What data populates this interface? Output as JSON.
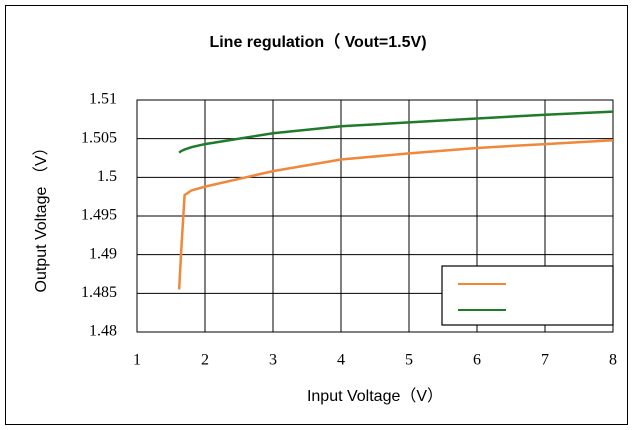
{
  "chart_data": {
    "type": "line",
    "title": "Line regulation（ Vout=1.5V)",
    "x_label": "Input Voltage（V）",
    "y_label": "Output Voltage （V）",
    "x": [
      1.62,
      1.65,
      1.7,
      1.8,
      2,
      3,
      4,
      5,
      6,
      7,
      8
    ],
    "series": [
      {
        "color": "#f0883a",
        "values": [
          1.4855,
          1.4905,
          1.4977,
          1.4983,
          1.4988,
          1.5008,
          1.5023,
          1.5031,
          1.5038,
          1.5043,
          1.5048
        ]
      },
      {
        "color": "#1e7b2a",
        "values": [
          1.5032,
          1.5034,
          1.5036,
          1.5039,
          1.5043,
          1.5057,
          1.5066,
          1.5071,
          1.5076,
          1.5081,
          1.5085
        ]
      }
    ],
    "xlim": [
      1,
      8
    ],
    "xticks": [
      1,
      2,
      3,
      4,
      5,
      6,
      7,
      8
    ],
    "ylim": [
      1.48,
      1.51
    ],
    "yticks": [
      1.48,
      1.485,
      1.49,
      1.495,
      1.5,
      1.505,
      1.51
    ],
    "grid": true,
    "legend": "lower right"
  }
}
